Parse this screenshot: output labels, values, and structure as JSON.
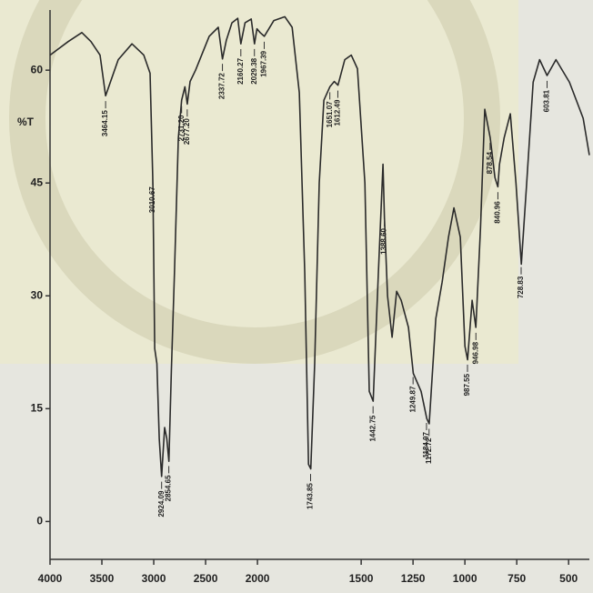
{
  "chart_data": {
    "type": "line",
    "y_label": "%T",
    "x": [
      4000,
      3825,
      3693,
      3605,
      3518,
      3464,
      3342,
      3210,
      3096,
      3035,
      3008,
      2991,
      2970,
      2947,
      2924,
      2895,
      2874,
      2854,
      2830,
      2800,
      2763,
      2731,
      2700,
      2677,
      2650,
      2597,
      2465,
      2378,
      2337,
      2300,
      2246,
      2190,
      2160,
      2120,
      2060,
      2029,
      2005,
      1987,
      1967,
      1921,
      1868,
      1833,
      1798,
      1772,
      1754,
      1743,
      1724,
      1702,
      1680,
      1651,
      1630,
      1612,
      1579,
      1548,
      1518,
      1482,
      1461,
      1442,
      1417,
      1395,
      1388,
      1373,
      1351,
      1329,
      1307,
      1272,
      1249,
      1211,
      1184,
      1172,
      1140,
      1110,
      1079,
      1053,
      1022,
      1000,
      987,
      965,
      947,
      925,
      904,
      878,
      855,
      841,
      833,
      811,
      781,
      754,
      728,
      702,
      671,
      640,
      604,
      561,
      496,
      430,
      400
    ],
    "values": [
      62,
      63.8,
      65,
      63.8,
      62,
      56.6,
      61.4,
      63.5,
      62,
      59.6,
      45,
      23,
      21,
      11,
      6,
      12.5,
      11,
      8,
      20,
      33,
      51,
      56,
      57.8,
      55.5,
      58.5,
      60,
      64.5,
      65.7,
      61.5,
      64,
      66.3,
      66.9,
      63.5,
      66.3,
      66.8,
      63.5,
      65.5,
      65,
      64.5,
      66.6,
      67.1,
      65.7,
      57,
      33,
      7.6,
      7,
      21,
      45,
      56,
      57.8,
      58.5,
      58,
      61.4,
      62,
      60.2,
      45,
      17.3,
      16,
      33,
      47.5,
      40.3,
      30,
      24.5,
      30.6,
      29.4,
      25.8,
      19.7,
      17.3,
      13.7,
      13,
      27,
      31.8,
      37.8,
      41.7,
      37.8,
      23.3,
      21.5,
      29.4,
      25.8,
      39,
      54.8,
      51,
      45.7,
      44.5,
      47.5,
      51,
      54.2,
      45,
      34.2,
      45,
      58.4,
      61.4,
      59.3,
      61.4,
      58.4,
      53.6,
      48.7
    ],
    "color": "#2a2a2a",
    "xlim": [
      4000,
      400
    ],
    "ylim": [
      -6,
      68
    ],
    "x_scale_change_at": 2000,
    "x_scale_ratio": 2,
    "xticks": [
      4000,
      3500,
      3000,
      2500,
      2000,
      1500,
      1250,
      1000,
      750,
      500
    ],
    "yticks": [
      0,
      15,
      30,
      45,
      60
    ],
    "peaks": [
      3464.15,
      3010.67,
      2924.09,
      2854.65,
      {
        "value": 2731.2,
        "label": "2731.20"
      },
      {
        "value": 2677.2,
        "label": "2677.20"
      },
      2337.72,
      2160.27,
      2029.38,
      1967.39,
      1743.85,
      1651.07,
      1612.49,
      1442.75,
      {
        "value": 1388.6,
        "label": "1388.60"
      },
      1249.87,
      1184.97,
      1172.72,
      987.55,
      946.98,
      878.54,
      840.96,
      728.83,
      603.81
    ]
  }
}
